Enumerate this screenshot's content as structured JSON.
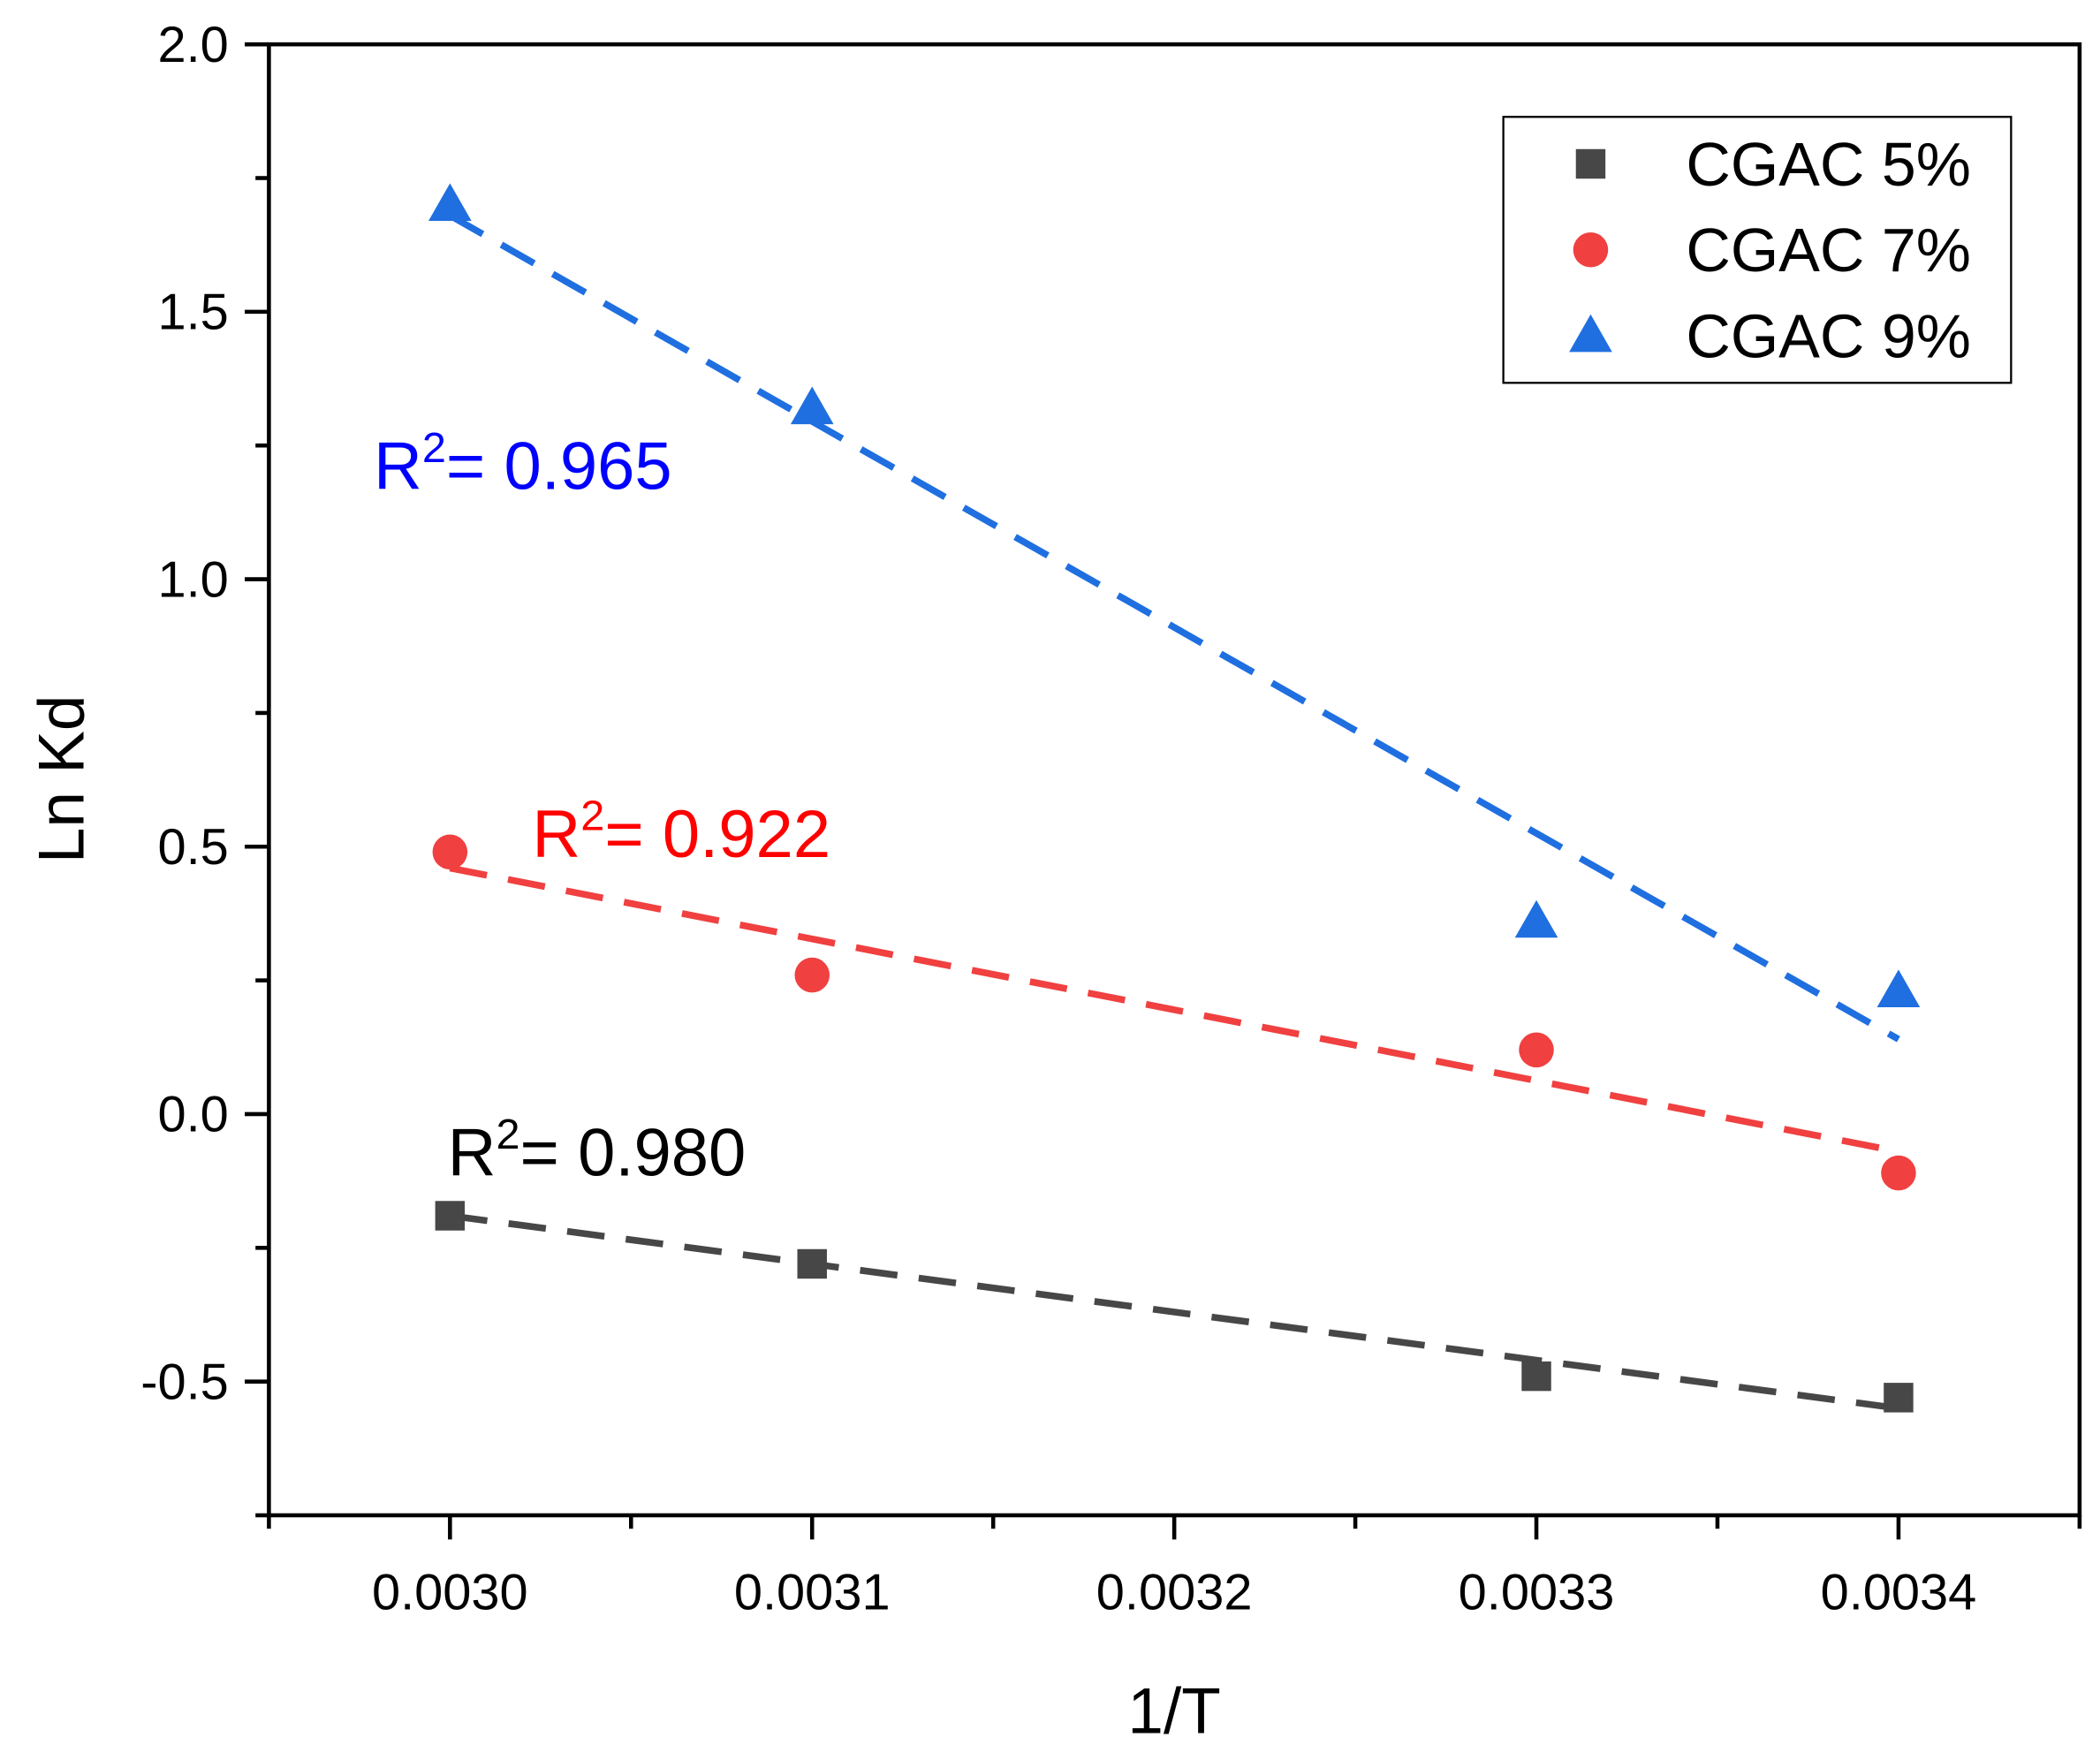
{
  "chart_data": {
    "type": "scatter",
    "title": "",
    "xlabel": "1/T",
    "ylabel": "Ln Kd",
    "xlim": [
      0.00295,
      0.00345
    ],
    "ylim": [
      -0.75,
      2.0
    ],
    "xticks": [
      0.003,
      0.0031,
      0.0032,
      0.0033,
      0.0034
    ],
    "xtick_labels": [
      "0.0030",
      "0.0031",
      "0.0032",
      "0.0033",
      "0.0034"
    ],
    "yticks": [
      -0.5,
      0.0,
      0.5,
      1.0,
      1.5,
      2.0
    ],
    "ytick_labels": [
      "-0.5",
      "0.0",
      "0.5",
      "1.0",
      "1.5",
      "2.0"
    ],
    "grid": false,
    "legend_position": "top-right",
    "series": [
      {
        "name": "CGAC 5%",
        "marker": "square",
        "color": "#474747",
        "x": [
          0.003,
          0.0031,
          0.0033,
          0.0034
        ],
        "y": [
          -0.19,
          -0.28,
          -0.49,
          -0.53
        ],
        "fit": [
          [
            0.003,
            -0.19
          ],
          [
            0.0034,
            -0.55
          ]
        ],
        "r2_label": "= 0.980",
        "r2_color": "#000000"
      },
      {
        "name": "CGAC 7%",
        "marker": "circle",
        "color": "#f04040",
        "x": [
          0.003,
          0.0031,
          0.0033,
          0.0034
        ],
        "y": [
          0.49,
          0.26,
          0.12,
          -0.11
        ],
        "fit": [
          [
            0.003,
            0.46
          ],
          [
            0.0034,
            -0.07
          ]
        ],
        "r2_label": "= 0.922",
        "r2_color": "#ff0000"
      },
      {
        "name": "CGAC 9%",
        "marker": "triangle",
        "color": "#1f6fe0",
        "x": [
          0.003,
          0.0031,
          0.0033,
          0.0034
        ],
        "y": [
          1.7,
          1.32,
          0.36,
          0.23
        ],
        "fit": [
          [
            0.003,
            1.68
          ],
          [
            0.0034,
            0.14
          ]
        ],
        "r2_label": "= 0.965",
        "r2_color": "#0000ff"
      }
    ],
    "r2_prefix": "R",
    "r2_sup": "2"
  }
}
